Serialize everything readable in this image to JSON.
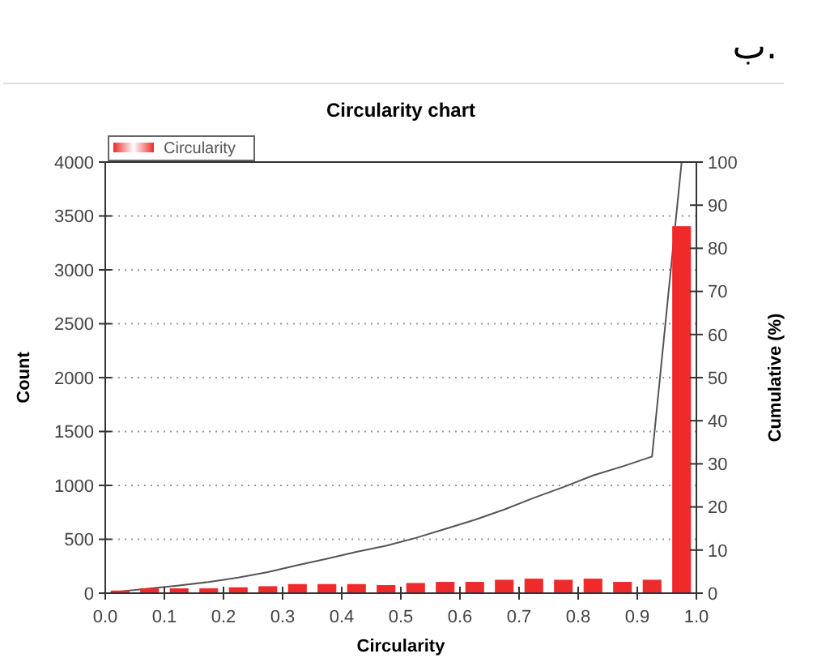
{
  "chart_data": {
    "type": "bar",
    "title": "Circularity chart",
    "xlabel": "Circularity",
    "ylabel": "Count",
    "y2label": "Cumulative (%)",
    "annotations": [
      "ب."
    ],
    "x": [
      0.025,
      0.075,
      0.125,
      0.175,
      0.225,
      0.275,
      0.325,
      0.375,
      0.425,
      0.475,
      0.525,
      0.575,
      0.625,
      0.675,
      0.725,
      0.775,
      0.825,
      0.875,
      0.925,
      0.975
    ],
    "series": [
      {
        "name": "Circularity",
        "color": "#ee2a2a",
        "values": [
          20,
          40,
          40,
          40,
          50,
          60,
          80,
          80,
          80,
          70,
          90,
          100,
          100,
          120,
          130,
          120,
          130,
          100,
          120,
          3400
        ]
      },
      {
        "type": "line",
        "axis": "y2",
        "color": "#555555",
        "values": [
          0.4,
          1.1,
          1.8,
          2.6,
          3.6,
          4.9,
          6.5,
          8.0,
          9.6,
          11.0,
          12.8,
          14.9,
          17.0,
          19.4,
          22.1,
          24.6,
          27.3,
          29.4,
          31.7,
          100
        ]
      }
    ],
    "xlim": [
      0,
      1
    ],
    "xticks": [
      {
        "value": 0,
        "label": "0.0"
      },
      {
        "value": 0.1,
        "label": "0.1"
      },
      {
        "value": 0.2,
        "label": "0.2"
      },
      {
        "value": 0.3,
        "label": "0.3"
      },
      {
        "value": 0.4,
        "label": "0.4"
      },
      {
        "value": 0.5,
        "label": "0.5"
      },
      {
        "value": 0.6,
        "label": "0.6"
      },
      {
        "value": 0.7,
        "label": "0.7"
      },
      {
        "value": 0.8,
        "label": "0.8"
      },
      {
        "value": 0.9,
        "label": "0.9"
      },
      {
        "value": 1,
        "label": "1.0"
      }
    ],
    "ylim": [
      0,
      4000
    ],
    "yticks": [
      0,
      500,
      1000,
      1500,
      2000,
      2500,
      3000,
      3500,
      4000
    ],
    "y2lim": [
      0,
      100
    ],
    "y2ticks": [
      0,
      10,
      20,
      30,
      40,
      50,
      60,
      70,
      80,
      90,
      100
    ],
    "grid": "y",
    "legend": "top left"
  }
}
